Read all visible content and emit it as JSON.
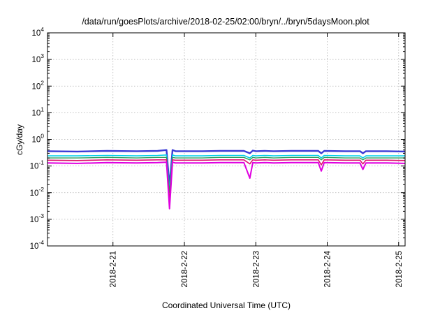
{
  "chart_data": {
    "type": "line",
    "title": "/data/run/goesPlots/archive/2018-02-25/02:00/bryn/../bryn/5daysMoon.plot",
    "xlabel": "Coordinated Universal Time (UTC)",
    "ylabel": "cGy/day",
    "yscale": "log",
    "ylim": [
      0.0001,
      10000
    ],
    "xlim": [
      "2018-02-20T02:00",
      "2018-02-25T02:10"
    ],
    "grid": true,
    "legend": "none",
    "y_ticks": [
      {
        "value": 0.0001,
        "base": "10",
        "exp": "-4"
      },
      {
        "value": 0.001,
        "base": "10",
        "exp": "-3"
      },
      {
        "value": 0.01,
        "base": "10",
        "exp": "-2"
      },
      {
        "value": 0.1,
        "base": "10",
        "exp": "-1"
      },
      {
        "value": 1,
        "base": "10",
        "exp": "0"
      },
      {
        "value": 10,
        "base": "10",
        "exp": "1"
      },
      {
        "value": 100,
        "base": "10",
        "exp": "2"
      },
      {
        "value": 1000,
        "base": "10",
        "exp": "3"
      },
      {
        "value": 10000,
        "base": "10",
        "exp": "4"
      }
    ],
    "x_ticks": [
      {
        "value": "2018-02-21",
        "label": "2018-2-21"
      },
      {
        "value": "2018-02-22",
        "label": "2018-2-22"
      },
      {
        "value": "2018-02-23",
        "label": "2018-2-23"
      },
      {
        "value": "2018-02-24",
        "label": "2018-2-24"
      },
      {
        "value": "2018-02-25",
        "label": "2018-2-25"
      }
    ],
    "series": [
      {
        "color": "#3a3ad6",
        "width": 2.4,
        "x": [
          "2018-02-20T02:00",
          "2018-02-20T12:00",
          "2018-02-20T22:00",
          "2018-02-21T08:00",
          "2018-02-21T15:00",
          "2018-02-21T18:00",
          "2018-02-21T19:00",
          "2018-02-21T20:00",
          "2018-02-21T21:00",
          "2018-02-22T06:00",
          "2018-02-22T12:00",
          "2018-02-22T20:00",
          "2018-02-22T22:00",
          "2018-02-22T23:00",
          "2018-02-23T00:00",
          "2018-02-23T03:00",
          "2018-02-23T06:00",
          "2018-02-23T12:00",
          "2018-02-23T21:00",
          "2018-02-23T22:00",
          "2018-02-23T23:00",
          "2018-02-24T06:00",
          "2018-02-24T11:00",
          "2018-02-24T12:00",
          "2018-02-24T13:00",
          "2018-02-24T20:00",
          "2018-02-25T02:10"
        ],
        "y": [
          0.36,
          0.35,
          0.37,
          0.36,
          0.37,
          0.4,
          0.018,
          0.4,
          0.36,
          0.36,
          0.37,
          0.37,
          0.3,
          0.38,
          0.36,
          0.37,
          0.36,
          0.37,
          0.37,
          0.3,
          0.37,
          0.36,
          0.36,
          0.3,
          0.36,
          0.36,
          0.35
        ]
      },
      {
        "color": "#00d0e8",
        "width": 1.6,
        "x": [
          "2018-02-20T02:00",
          "2018-02-20T12:00",
          "2018-02-20T22:00",
          "2018-02-21T08:00",
          "2018-02-21T15:00",
          "2018-02-21T18:00",
          "2018-02-21T19:00",
          "2018-02-21T20:00",
          "2018-02-21T21:00",
          "2018-02-22T06:00",
          "2018-02-22T12:00",
          "2018-02-22T20:00",
          "2018-02-22T22:00",
          "2018-02-22T23:00",
          "2018-02-23T00:00",
          "2018-02-23T03:00",
          "2018-02-23T06:00",
          "2018-02-23T12:00",
          "2018-02-23T21:00",
          "2018-02-23T22:00",
          "2018-02-23T23:00",
          "2018-02-24T06:00",
          "2018-02-24T11:00",
          "2018-02-24T12:00",
          "2018-02-24T13:00",
          "2018-02-24T20:00",
          "2018-02-25T02:10"
        ],
        "y": [
          0.24,
          0.24,
          0.25,
          0.24,
          0.25,
          0.26,
          0.012,
          0.26,
          0.24,
          0.24,
          0.25,
          0.25,
          0.2,
          0.25,
          0.24,
          0.25,
          0.24,
          0.25,
          0.25,
          0.2,
          0.25,
          0.24,
          0.24,
          0.2,
          0.24,
          0.24,
          0.24
        ]
      },
      {
        "color": "#2a9a5a",
        "width": 1.4,
        "x": [
          "2018-02-20T02:00",
          "2018-02-20T12:00",
          "2018-02-20T22:00",
          "2018-02-21T08:00",
          "2018-02-21T15:00",
          "2018-02-21T18:00",
          "2018-02-21T19:00",
          "2018-02-21T20:00",
          "2018-02-21T21:00",
          "2018-02-22T06:00",
          "2018-02-22T12:00",
          "2018-02-22T20:00",
          "2018-02-22T22:00",
          "2018-02-22T23:00",
          "2018-02-23T00:00",
          "2018-02-23T03:00",
          "2018-02-23T06:00",
          "2018-02-23T12:00",
          "2018-02-23T21:00",
          "2018-02-23T22:00",
          "2018-02-23T23:00",
          "2018-02-24T06:00",
          "2018-02-24T11:00",
          "2018-02-24T12:00",
          "2018-02-24T13:00",
          "2018-02-24T20:00",
          "2018-02-25T02:10"
        ],
        "y": [
          0.2,
          0.2,
          0.21,
          0.2,
          0.21,
          0.21,
          0.01,
          0.21,
          0.2,
          0.2,
          0.21,
          0.21,
          0.17,
          0.21,
          0.2,
          0.21,
          0.2,
          0.21,
          0.21,
          0.17,
          0.21,
          0.2,
          0.2,
          0.17,
          0.2,
          0.2,
          0.2
        ]
      },
      {
        "color": "#e0106e",
        "width": 1.6,
        "x": [
          "2018-02-20T02:00",
          "2018-02-20T12:00",
          "2018-02-20T22:00",
          "2018-02-21T08:00",
          "2018-02-21T15:00",
          "2018-02-21T18:00",
          "2018-02-21T19:00",
          "2018-02-21T20:00",
          "2018-02-21T21:00",
          "2018-02-22T06:00",
          "2018-02-22T12:00",
          "2018-02-22T20:00",
          "2018-02-22T22:00",
          "2018-02-22T23:00",
          "2018-02-23T00:00",
          "2018-02-23T03:00",
          "2018-02-23T06:00",
          "2018-02-23T12:00",
          "2018-02-23T21:00",
          "2018-02-23T22:00",
          "2018-02-23T23:00",
          "2018-02-24T06:00",
          "2018-02-24T11:00",
          "2018-02-24T12:00",
          "2018-02-24T13:00",
          "2018-02-24T20:00",
          "2018-02-25T02:10"
        ],
        "y": [
          0.165,
          0.16,
          0.17,
          0.165,
          0.17,
          0.17,
          0.0045,
          0.17,
          0.165,
          0.165,
          0.17,
          0.17,
          0.12,
          0.17,
          0.165,
          0.17,
          0.165,
          0.17,
          0.17,
          0.11,
          0.17,
          0.165,
          0.165,
          0.12,
          0.165,
          0.165,
          0.16
        ]
      },
      {
        "color": "#e000e0",
        "width": 2.0,
        "x": [
          "2018-02-20T02:00",
          "2018-02-20T12:00",
          "2018-02-20T22:00",
          "2018-02-21T08:00",
          "2018-02-21T15:00",
          "2018-02-21T18:00",
          "2018-02-21T19:00",
          "2018-02-21T20:00",
          "2018-02-21T21:00",
          "2018-02-22T06:00",
          "2018-02-22T12:00",
          "2018-02-22T20:00",
          "2018-02-22T22:00",
          "2018-02-22T23:00",
          "2018-02-23T00:00",
          "2018-02-23T03:00",
          "2018-02-23T06:00",
          "2018-02-23T12:00",
          "2018-02-23T21:00",
          "2018-02-23T22:00",
          "2018-02-23T23:00",
          "2018-02-24T06:00",
          "2018-02-24T11:00",
          "2018-02-24T12:00",
          "2018-02-24T13:00",
          "2018-02-24T20:00",
          "2018-02-25T02:10"
        ],
        "y": [
          0.13,
          0.125,
          0.135,
          0.13,
          0.135,
          0.14,
          0.0025,
          0.14,
          0.13,
          0.13,
          0.135,
          0.135,
          0.035,
          0.135,
          0.13,
          0.135,
          0.13,
          0.135,
          0.135,
          0.065,
          0.135,
          0.13,
          0.13,
          0.075,
          0.13,
          0.13,
          0.125
        ]
      }
    ]
  }
}
